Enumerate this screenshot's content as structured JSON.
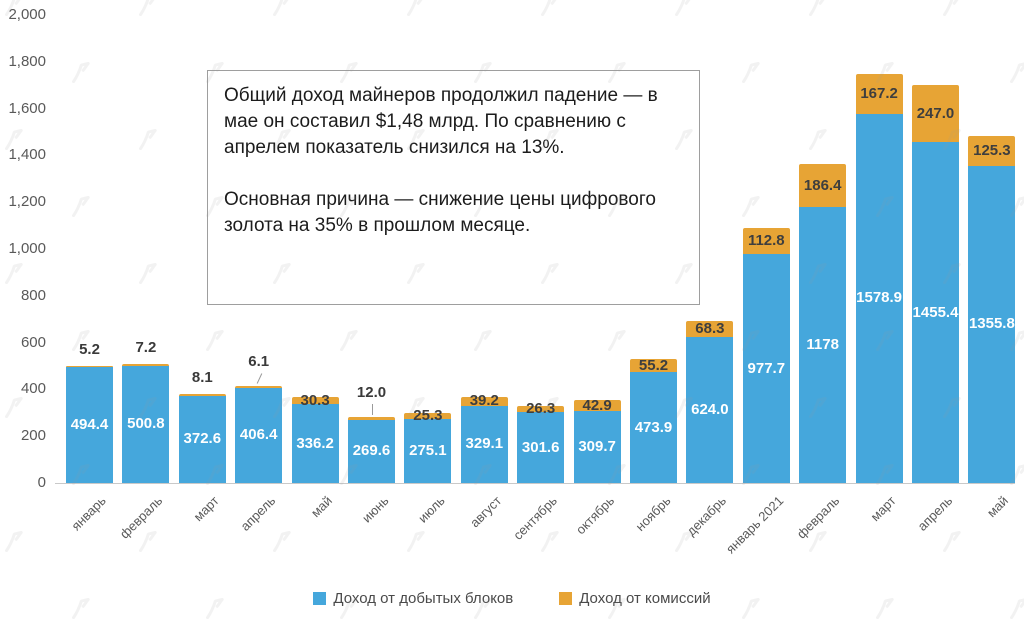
{
  "annotation": {
    "para1": "Общий доход майнеров продолжил падение — в мае он составил $1,48 млрд. По сравнению с апрелем показатель снизился на 13%.",
    "para2": "Основная причина — снижение цены цифрового золота на 35% в прошлом месяце."
  },
  "legend": [
    {
      "label": "Доход от добытых блоков",
      "color": "#45a7dc"
    },
    {
      "label": "Доход от комиссий",
      "color": "#e7a435"
    }
  ],
  "colors": {
    "blocks_blue": "#45a7dc",
    "fees_orange": "#e7a435",
    "bar_label_white": "#ffffff",
    "bar_label_dark": "#3e3e3e",
    "axis_text": "#595959",
    "baseline": "#c9c9c9",
    "watermark_gray": "#9c9c9c"
  },
  "chart_data": {
    "type": "bar",
    "stacked": true,
    "title": "",
    "xlabel": "",
    "ylabel": "",
    "ylim": [
      0,
      2000
    ],
    "grid": false,
    "legend_position": "bottom",
    "yticks": [
      {
        "v": 0,
        "label": "0"
      },
      {
        "v": 200,
        "label": "200"
      },
      {
        "v": 400,
        "label": "400"
      },
      {
        "v": 600,
        "label": "600"
      },
      {
        "v": 800,
        "label": "800"
      },
      {
        "v": 1000,
        "label": "1,000"
      },
      {
        "v": 1200,
        "label": "1,200"
      },
      {
        "v": 1400,
        "label": "1,400"
      },
      {
        "v": 1600,
        "label": "1,600"
      },
      {
        "v": 1800,
        "label": "1,800"
      },
      {
        "v": 2000,
        "label": "2,000"
      }
    ],
    "categories": [
      "январь",
      "февраль",
      "март",
      "апрель",
      "май",
      "июнь",
      "июль",
      "август",
      "сентябрь",
      "октябрь",
      "ноябрь",
      "декабрь",
      "январь 2021",
      "февраль",
      "март",
      "апрель",
      "май"
    ],
    "series": [
      {
        "name": "Доход от добытых блоков",
        "color": "#45a7dc",
        "values": [
          494.4,
          500.8,
          372.6,
          406.4,
          336.2,
          269.6,
          275.1,
          329.1,
          301.6,
          309.7,
          473.9,
          624.0,
          977.7,
          1178,
          1578.9,
          1455.4,
          1355.8
        ],
        "labels": [
          "494.4",
          "500.8",
          "372.6",
          "406.4",
          "336.2",
          "269.6",
          "275.1",
          "329.1",
          "301.6",
          "309.7",
          "473.9",
          "624.0",
          "977.7",
          "1178",
          "1578.9",
          "1455.4",
          "1355.8"
        ]
      },
      {
        "name": "Доход от комиссий",
        "color": "#e7a435",
        "values": [
          5.2,
          7.2,
          8.1,
          6.1,
          30.3,
          12.0,
          25.3,
          39.2,
          26.3,
          42.9,
          55.2,
          68.3,
          112.8,
          186.4,
          167.2,
          247.0,
          125.3
        ],
        "labels": [
          "5.2",
          "7.2",
          "8.1",
          "6.1",
          "30.3",
          "12.0",
          "25.3",
          "39.2",
          "26.3",
          "42.9",
          "55.2",
          "68.3",
          "112.8",
          "186.4",
          "167.2",
          "247.0",
          "125.3"
        ],
        "label_modes": [
          "above",
          "above",
          "above",
          "above-diag-line",
          "on",
          "above-vline",
          "on",
          "on",
          "on",
          "on",
          "on",
          "on",
          "on",
          "on",
          "on",
          "on",
          "on"
        ]
      }
    ]
  }
}
